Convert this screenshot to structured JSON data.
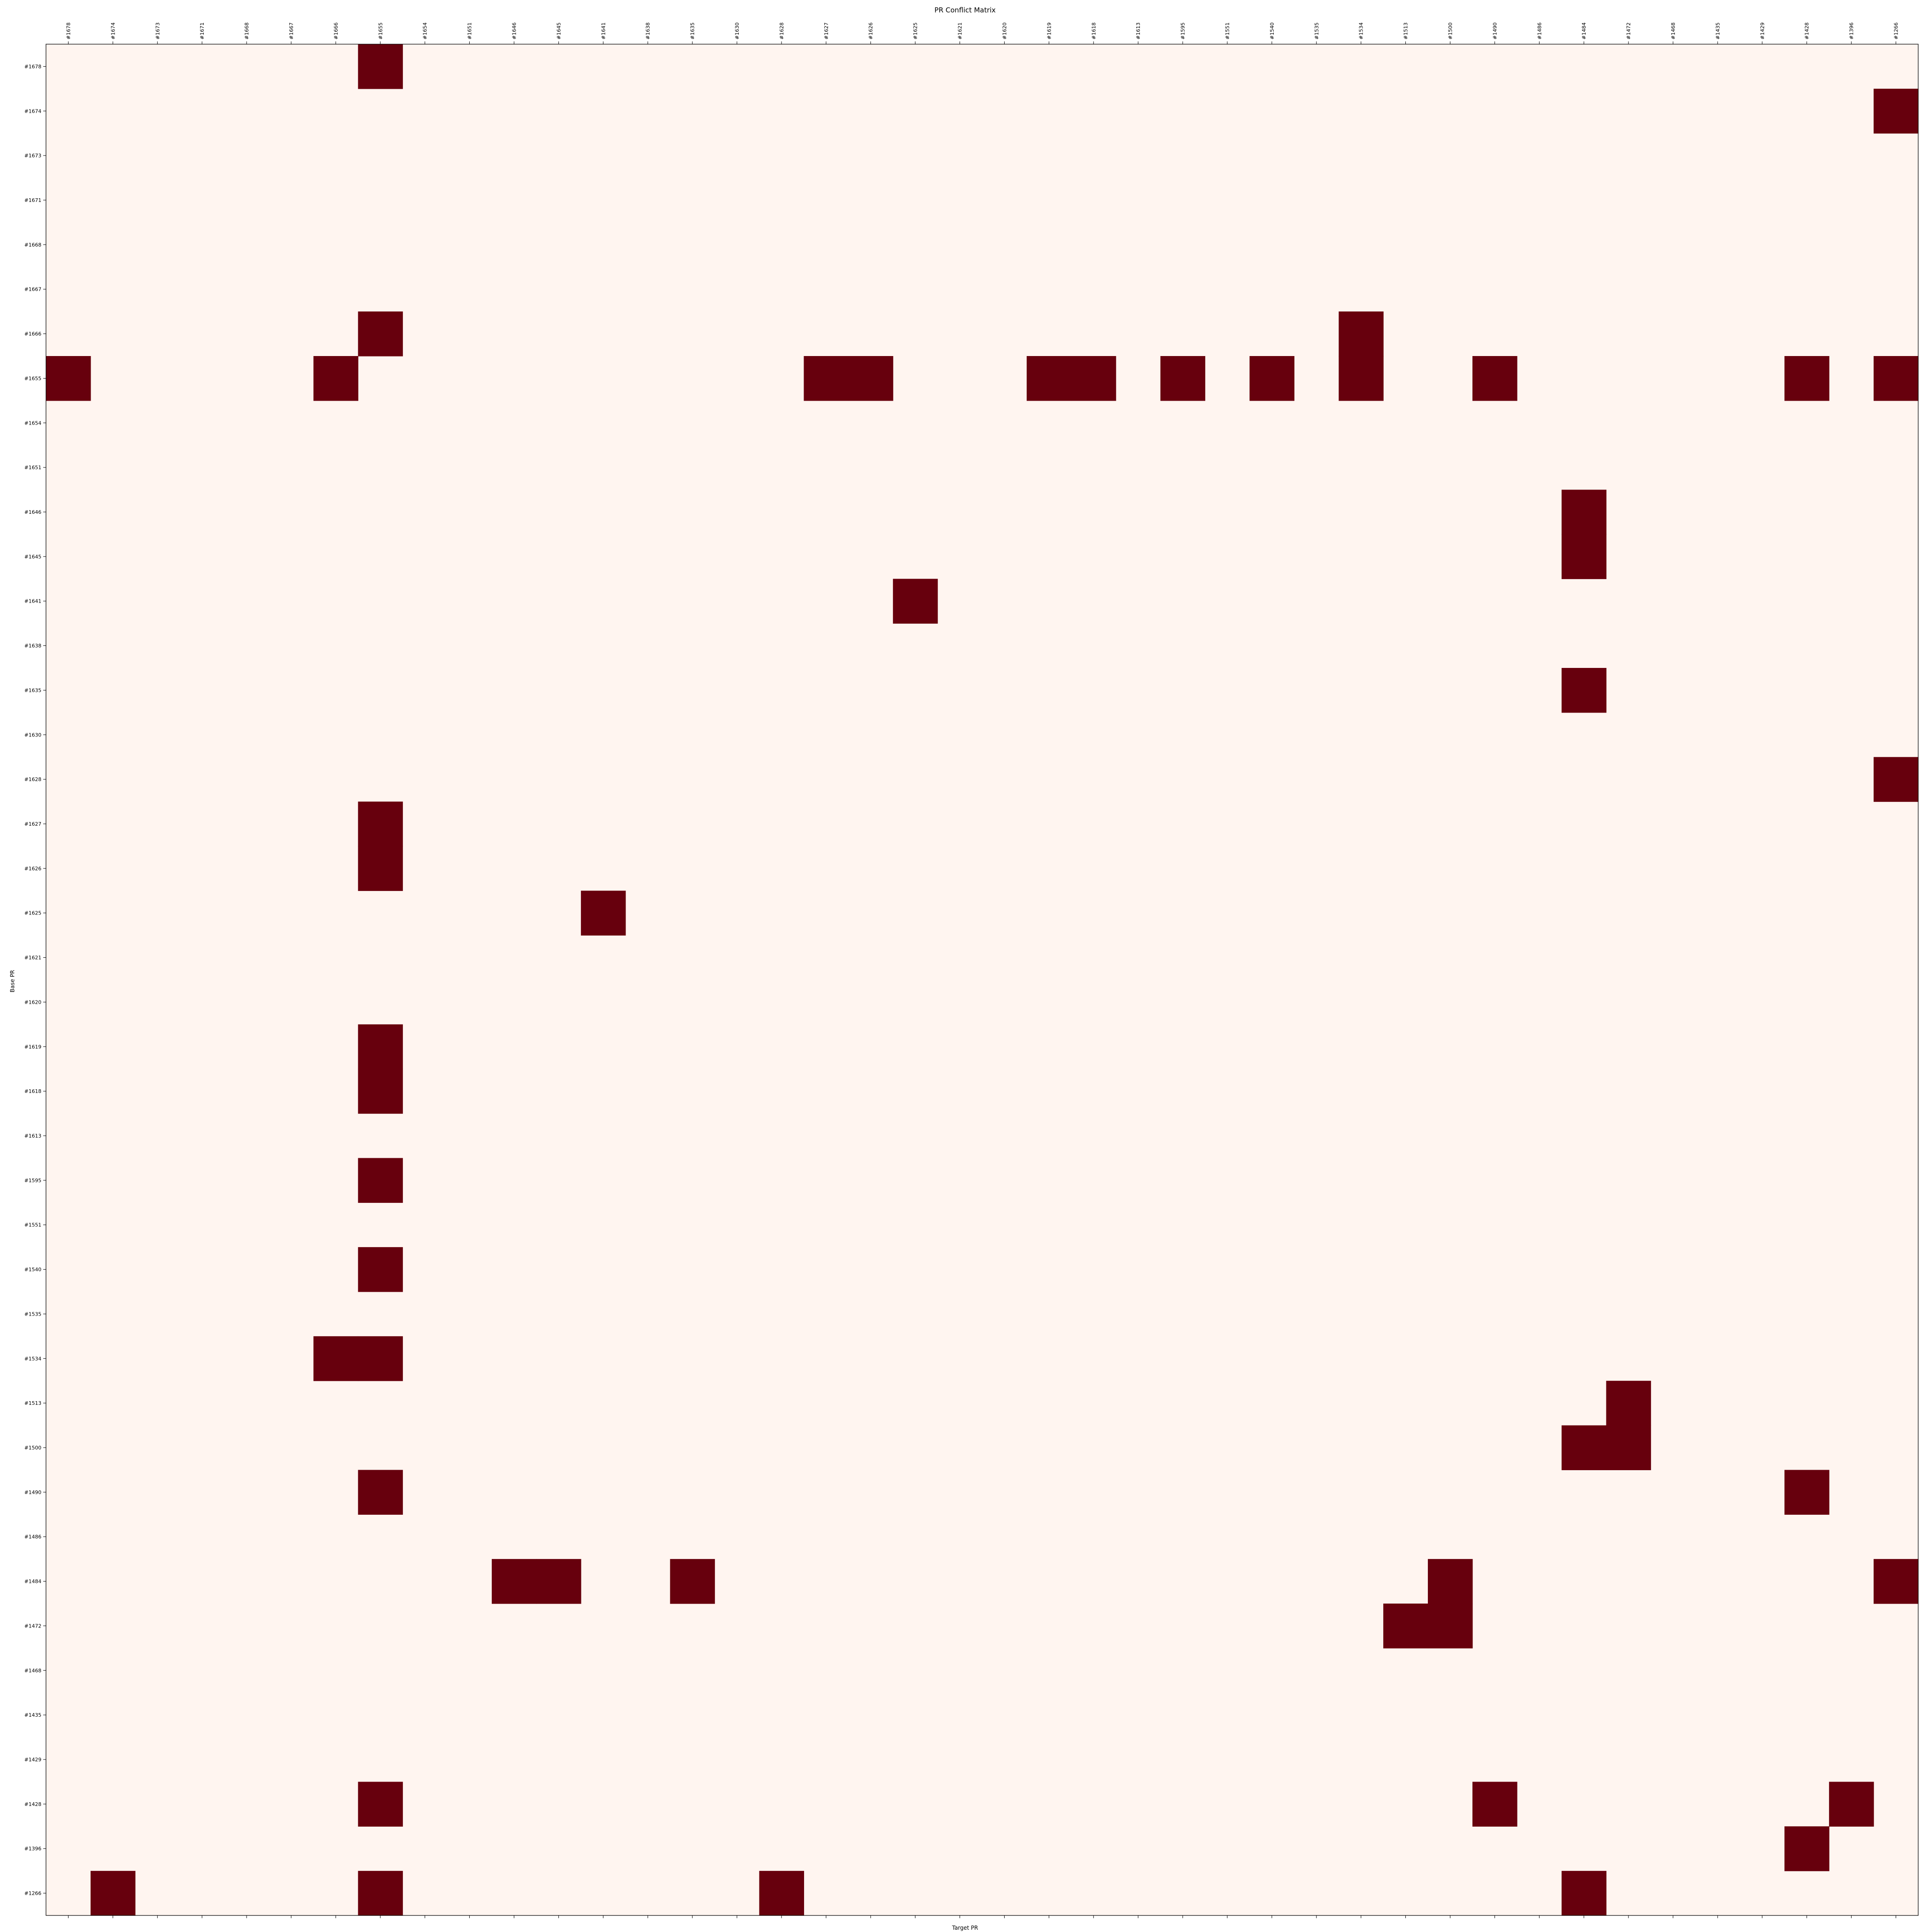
{
  "chart_data": {
    "type": "heatmap",
    "title": "PR Conflict Matrix",
    "xlabel": "Target PR",
    "ylabel": "Base PR",
    "x_categories": [
      "#1678",
      "#1674",
      "#1673",
      "#1671",
      "#1668",
      "#1667",
      "#1666",
      "#1655",
      "#1654",
      "#1651",
      "#1646",
      "#1645",
      "#1641",
      "#1638",
      "#1635",
      "#1630",
      "#1628",
      "#1627",
      "#1626",
      "#1625",
      "#1621",
      "#1620",
      "#1619",
      "#1618",
      "#1613",
      "#1595",
      "#1551",
      "#1540",
      "#1535",
      "#1534",
      "#1513",
      "#1500",
      "#1490",
      "#1486",
      "#1484",
      "#1472",
      "#1468",
      "#1435",
      "#1429",
      "#1428",
      "#1396",
      "#1266"
    ],
    "y_categories": [
      "#1678",
      "#1674",
      "#1673",
      "#1671",
      "#1668",
      "#1667",
      "#1666",
      "#1655",
      "#1654",
      "#1651",
      "#1646",
      "#1645",
      "#1641",
      "#1638",
      "#1635",
      "#1630",
      "#1628",
      "#1627",
      "#1626",
      "#1625",
      "#1621",
      "#1620",
      "#1619",
      "#1618",
      "#1613",
      "#1595",
      "#1551",
      "#1540",
      "#1535",
      "#1534",
      "#1513",
      "#1500",
      "#1490",
      "#1486",
      "#1484",
      "#1472",
      "#1468",
      "#1435",
      "#1429",
      "#1428",
      "#1396",
      "#1266"
    ],
    "x_tick_position": "top",
    "value_range": [
      0,
      1
    ],
    "colormap": "Reds",
    "grid": false,
    "conflicts": [
      {
        "base": "#1678",
        "target": "#1655"
      },
      {
        "base": "#1674",
        "target": "#1266"
      },
      {
        "base": "#1666",
        "target": "#1655"
      },
      {
        "base": "#1666",
        "target": "#1534"
      },
      {
        "base": "#1655",
        "target": "#1678"
      },
      {
        "base": "#1655",
        "target": "#1666"
      },
      {
        "base": "#1655",
        "target": "#1627"
      },
      {
        "base": "#1655",
        "target": "#1626"
      },
      {
        "base": "#1655",
        "target": "#1619"
      },
      {
        "base": "#1655",
        "target": "#1618"
      },
      {
        "base": "#1655",
        "target": "#1595"
      },
      {
        "base": "#1655",
        "target": "#1540"
      },
      {
        "base": "#1655",
        "target": "#1534"
      },
      {
        "base": "#1655",
        "target": "#1490"
      },
      {
        "base": "#1655",
        "target": "#1428"
      },
      {
        "base": "#1655",
        "target": "#1266"
      },
      {
        "base": "#1646",
        "target": "#1484"
      },
      {
        "base": "#1645",
        "target": "#1484"
      },
      {
        "base": "#1641",
        "target": "#1625"
      },
      {
        "base": "#1635",
        "target": "#1484"
      },
      {
        "base": "#1628",
        "target": "#1266"
      },
      {
        "base": "#1627",
        "target": "#1655"
      },
      {
        "base": "#1626",
        "target": "#1655"
      },
      {
        "base": "#1625",
        "target": "#1641"
      },
      {
        "base": "#1619",
        "target": "#1655"
      },
      {
        "base": "#1618",
        "target": "#1655"
      },
      {
        "base": "#1595",
        "target": "#1655"
      },
      {
        "base": "#1540",
        "target": "#1655"
      },
      {
        "base": "#1534",
        "target": "#1666"
      },
      {
        "base": "#1534",
        "target": "#1655"
      },
      {
        "base": "#1513",
        "target": "#1472"
      },
      {
        "base": "#1500",
        "target": "#1484"
      },
      {
        "base": "#1500",
        "target": "#1472"
      },
      {
        "base": "#1490",
        "target": "#1655"
      },
      {
        "base": "#1490",
        "target": "#1428"
      },
      {
        "base": "#1484",
        "target": "#1646"
      },
      {
        "base": "#1484",
        "target": "#1645"
      },
      {
        "base": "#1484",
        "target": "#1635"
      },
      {
        "base": "#1484",
        "target": "#1500"
      },
      {
        "base": "#1484",
        "target": "#1266"
      },
      {
        "base": "#1472",
        "target": "#1513"
      },
      {
        "base": "#1472",
        "target": "#1500"
      },
      {
        "base": "#1428",
        "target": "#1655"
      },
      {
        "base": "#1428",
        "target": "#1490"
      },
      {
        "base": "#1428",
        "target": "#1396"
      },
      {
        "base": "#1396",
        "target": "#1428"
      },
      {
        "base": "#1266",
        "target": "#1674"
      },
      {
        "base": "#1266",
        "target": "#1655"
      },
      {
        "base": "#1266",
        "target": "#1628"
      },
      {
        "base": "#1266",
        "target": "#1484"
      }
    ]
  },
  "colors": {
    "no_conflict": "#fff5f0",
    "conflict": "#67000d",
    "axis": "#000000",
    "background": "#ffffff"
  }
}
